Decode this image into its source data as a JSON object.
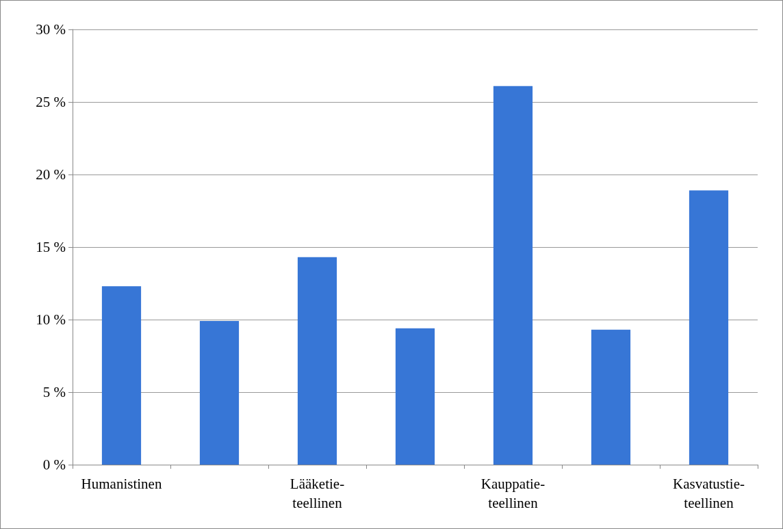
{
  "chart_data": {
    "type": "bar",
    "categories": [
      "Humanistinen",
      null,
      "Lääketie-\nteellinen",
      null,
      "Kauppatie-\nteellinen",
      null,
      "Kasvatustie-\nteellinen"
    ],
    "values": [
      12.3,
      9.9,
      14.3,
      9.4,
      26.1,
      9.3,
      18.9
    ],
    "color": "#3776d6",
    "ylim": [
      0,
      30
    ],
    "yticks": [
      {
        "value": 0,
        "label": "0 %"
      },
      {
        "value": 5,
        "label": "5 %"
      },
      {
        "value": 10,
        "label": "10 %"
      },
      {
        "value": 15,
        "label": "15 %"
      },
      {
        "value": 20,
        "label": "20 %"
      },
      {
        "value": 25,
        "label": "25 %"
      },
      {
        "value": 30,
        "label": "30 %"
      }
    ],
    "grid": "y"
  }
}
